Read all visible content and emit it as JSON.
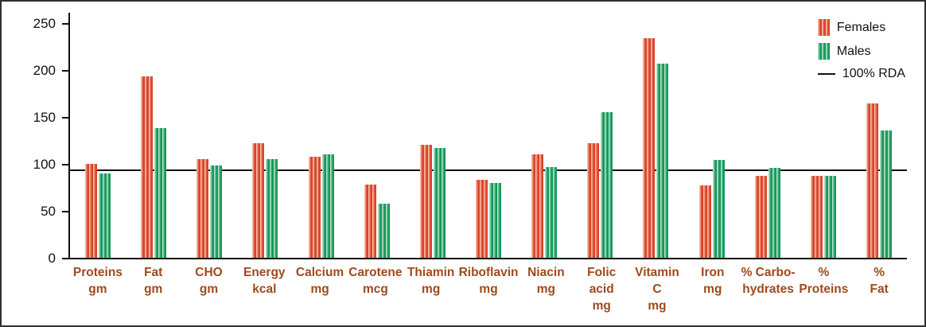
{
  "chart_data": {
    "type": "bar",
    "title": "",
    "xlabel": "",
    "ylabel": "",
    "y_ticks": [
      0,
      50,
      100,
      150,
      200,
      250
    ],
    "ylim": [
      0,
      262
    ],
    "grid": false,
    "legend_position": "top-right",
    "categories": [
      {
        "line1": "Proteins",
        "line2": "gm"
      },
      {
        "line1": "Fat",
        "line2": "gm"
      },
      {
        "line1": "CHO",
        "line2": "gm"
      },
      {
        "line1": "Energy",
        "line2": "kcal"
      },
      {
        "line1": "Calcium",
        "line2": "mg"
      },
      {
        "line1": "Carotene",
        "line2": "mcg"
      },
      {
        "line1": "Thiamin",
        "line2": "mg"
      },
      {
        "line1": "Riboflavin",
        "line2": "mg"
      },
      {
        "line1": "Niacin",
        "line2": "mg"
      },
      {
        "line1": "Folic acid",
        "line2": "mg"
      },
      {
        "line1": "Vitamin C",
        "line2": "mg"
      },
      {
        "line1": "Iron",
        "line2": "mg"
      },
      {
        "line1": "% Carbo-",
        "line2": "hydrates"
      },
      {
        "line1": "%",
        "line2": "Proteins"
      },
      {
        "line1": "%",
        "line2": "Fat"
      }
    ],
    "series": [
      {
        "name": "Females",
        "color": "#d9432a",
        "highlight": "#fbd3ba",
        "values": [
          100,
          193,
          105,
          122,
          108,
          78,
          120,
          83,
          110,
          122,
          234,
          77,
          87,
          87,
          164
        ]
      },
      {
        "name": "Males",
        "color": "#12995a",
        "highlight": "#d2ecdb",
        "values": [
          90,
          138,
          98,
          105,
          110,
          58,
          117,
          80,
          97,
          155,
          207,
          104,
          96,
          87,
          136
        ]
      }
    ],
    "rda_line": {
      "label": "100% RDA",
      "value": 92,
      "color": "#111111"
    },
    "colors": {
      "category_label": "#9e4a1c",
      "axis": "#111111"
    }
  }
}
